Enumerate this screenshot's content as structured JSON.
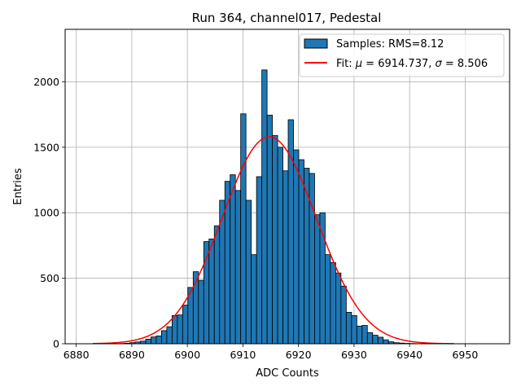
{
  "chart_data": {
    "type": "bar",
    "title": "Run 364, channel017, Pedestal",
    "xlabel": "ADC Counts",
    "ylabel": "Entries",
    "xlim": [
      6878,
      6958
    ],
    "ylim": [
      0,
      2400
    ],
    "xticks": [
      6880,
      6890,
      6900,
      6910,
      6920,
      6930,
      6940,
      6950
    ],
    "yticks": [
      0,
      500,
      1000,
      1500,
      2000
    ],
    "grid": true,
    "legend_position": "top-right",
    "histogram": {
      "name": "Samples: RMS=8.12",
      "color": "#1f77b4",
      "edge_color": "#000000",
      "bin_width": 0.95,
      "bin_starts": [
        6883.0,
        6883.95,
        6884.9,
        6885.85,
        6886.8,
        6887.75,
        6888.7,
        6889.65,
        6890.6,
        6891.55,
        6892.5,
        6893.45,
        6894.4,
        6895.35,
        6896.3,
        6897.25,
        6898.2,
        6899.15,
        6900.1,
        6901.05,
        6902.0,
        6902.95,
        6903.9,
        6904.85,
        6905.8,
        6906.75,
        6907.7,
        6908.65,
        6909.6,
        6910.55,
        6911.5,
        6912.45,
        6913.4,
        6914.35,
        6915.3,
        6916.25,
        6917.2,
        6918.15,
        6919.1,
        6920.05,
        6921.0,
        6921.95,
        6922.9,
        6923.85,
        6924.8,
        6925.75,
        6926.7,
        6927.65,
        6928.6,
        6929.55,
        6930.5,
        6931.45,
        6932.4,
        6933.35,
        6934.3,
        6935.25,
        6936.2,
        6937.15,
        6938.1,
        6939.05,
        6940.0,
        6940.95,
        6941.9,
        6942.85,
        6943.8,
        6944.75,
        6945.7,
        6946.65,
        6947.6,
        6948.55,
        6949.5,
        6950.45,
        6951.4,
        6952.35,
        6953.3,
        6954.25
      ],
      "counts": [
        0,
        0,
        0,
        0,
        0,
        2,
        4,
        8,
        14,
        20,
        35,
        52,
        60,
        100,
        130,
        215,
        220,
        295,
        430,
        550,
        485,
        780,
        800,
        900,
        1095,
        1240,
        1290,
        1170,
        1755,
        1095,
        680,
        1275,
        2090,
        1745,
        1590,
        1500,
        1320,
        1710,
        1480,
        1405,
        1340,
        1300,
        985,
        1000,
        680,
        620,
        540,
        440,
        240,
        215,
        135,
        140,
        85,
        65,
        50,
        30,
        15,
        8,
        5,
        3,
        2,
        1,
        0,
        0,
        0,
        0,
        0,
        0,
        0,
        0,
        0,
        0,
        0,
        0,
        0,
        0
      ]
    },
    "fit": {
      "name": "Fit: μ = 6914.737, σ = 8.506",
      "label_prefix": "Fit: ",
      "mu_symbol": "μ",
      "sigma_symbol": "σ",
      "mu_text": " = 6914.737, ",
      "sigma_text": " = 8.506",
      "mu": 6914.737,
      "sigma": 8.506,
      "amplitude": 1580,
      "x_range": [
        6883,
        6948
      ],
      "color": "#ff0000"
    }
  }
}
